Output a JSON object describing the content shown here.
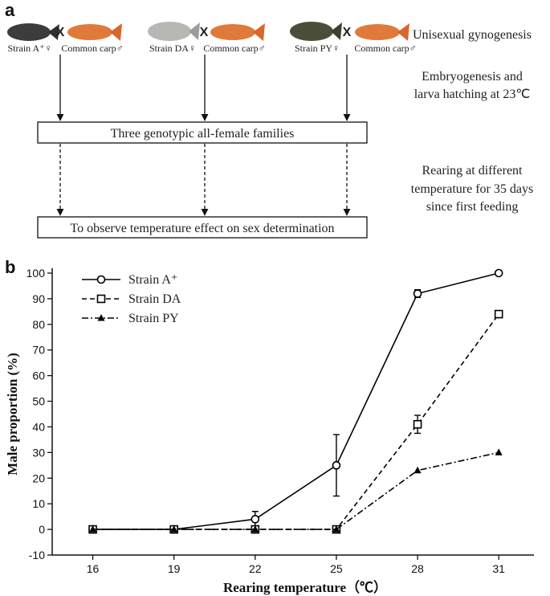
{
  "panel_a": {
    "label": "a",
    "crosses": [
      {
        "female": "Strain A⁺♀",
        "symbol": "X",
        "male": "Common carp♂"
      },
      {
        "female": "Strain DA♀",
        "symbol": "X",
        "male": "Common carp♂"
      },
      {
        "female": "Strain PY♀",
        "symbol": "X",
        "male": "Common carp♂"
      }
    ],
    "notes": [
      [
        "Unisexual gynogenesis"
      ],
      [
        "Embryogenesis and",
        "larva hatching at 23℃"
      ],
      [
        "Rearing at different",
        "temperature for 35 days",
        "since first feeding"
      ]
    ],
    "boxes": [
      "Three genotypic all-female families",
      "To observe temperature effect on sex determination"
    ]
  },
  "chart_data": {
    "type": "line",
    "panel_label": "b",
    "x_label": "Rearing temperature（℃）",
    "y_label": "Male proportion (%)",
    "x": [
      16,
      19,
      22,
      25,
      28,
      31
    ],
    "xlim": [
      14.5,
      32.3
    ],
    "xticks": [
      16,
      19,
      22,
      25,
      28,
      31
    ],
    "ylim": [
      -10,
      100
    ],
    "yticks": [
      -10,
      0,
      10,
      20,
      30,
      40,
      50,
      60,
      70,
      80,
      90,
      100
    ],
    "legend": "upper left",
    "series": [
      {
        "name": "Strain A⁺",
        "color": "#000000",
        "marker": "circle",
        "line_style": "solid",
        "values": [
          0,
          0,
          4,
          25,
          92,
          100
        ],
        "errors": [
          null,
          null,
          3,
          12,
          1.5,
          null
        ]
      },
      {
        "name": "Strain DA",
        "color": "#000000",
        "marker": "square",
        "line_style": "dashed",
        "values": [
          0,
          0,
          0,
          0,
          41,
          84
        ],
        "errors": [
          null,
          null,
          null,
          null,
          3.5,
          null
        ]
      },
      {
        "name": "Strain PY",
        "color": "#000000",
        "marker": "triangle",
        "line_style": "dashdot",
        "values": [
          0,
          0,
          0,
          0,
          23,
          30
        ]
      }
    ]
  }
}
